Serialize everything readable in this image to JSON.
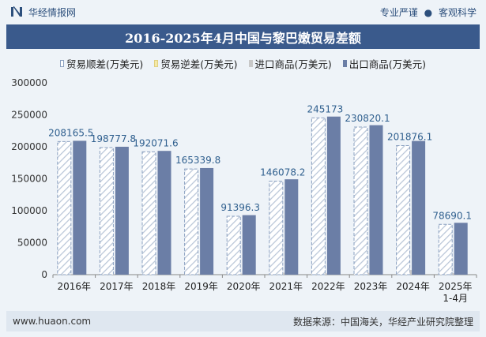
{
  "header": {
    "brand": "华经情报网",
    "right_items": [
      "专业严谨",
      "客观科学"
    ],
    "separator": "●"
  },
  "title": "2016-2025年4月中国与黎巴嫩贸易差额",
  "legend": [
    {
      "label": "贸易顺差(万美元)",
      "color": "#ffffff"
    },
    {
      "label": "贸易逆差(万美元)",
      "color": "#f4e9a8"
    },
    {
      "label": "进口商品(万美元)",
      "color": "#c8c8c8"
    },
    {
      "label": "出口商品(万美元)",
      "color": "#6b7ea6"
    }
  ],
  "footer": {
    "left": "www.huaon.com",
    "right": "数据来源：中国海关，华经产业研究院整理"
  },
  "chart_data": {
    "type": "bar",
    "categories": [
      "2016年",
      "2017年",
      "2018年",
      "2019年",
      "2020年",
      "2021年",
      "2022年",
      "2023年",
      "2024年",
      "2025年\n1-4月"
    ],
    "series": [
      {
        "name": "贸易顺差(万美元)",
        "values": [
          208165.5,
          198777.8,
          192071.6,
          165339.8,
          91396.3,
          146078.2,
          245173,
          230820.1,
          201876.1,
          78690.1
        ]
      },
      {
        "name": "进口商品(万美元)",
        "values": [
          1200,
          1300,
          1500,
          1400,
          1700,
          3100,
          2100,
          3000,
          7300,
          2400
        ]
      },
      {
        "name": "出口商品(万美元)",
        "values": [
          209365.5,
          200077.8,
          193571.6,
          166739.8,
          93096.3,
          149178.2,
          247273,
          233820.1,
          209176.1,
          81090.1
        ]
      }
    ],
    "data_labels": [
      "208165.5",
      "198777.8",
      "192071.6",
      "165339.8",
      "91396.3",
      "146078.2",
      "245173",
      "230820.1",
      "201876.1",
      "78690.1"
    ],
    "yticks": [
      "0",
      "50000",
      "100000",
      "150000",
      "200000",
      "250000",
      "300000"
    ],
    "ylim": [
      0,
      300000
    ],
    "legend_position": "top",
    "grid": false,
    "colors": {
      "surplus_hatch": "#8aa0c0",
      "export": "#6b7ea6",
      "import": "#c8c8c8",
      "label": "#2f5f8e"
    }
  }
}
